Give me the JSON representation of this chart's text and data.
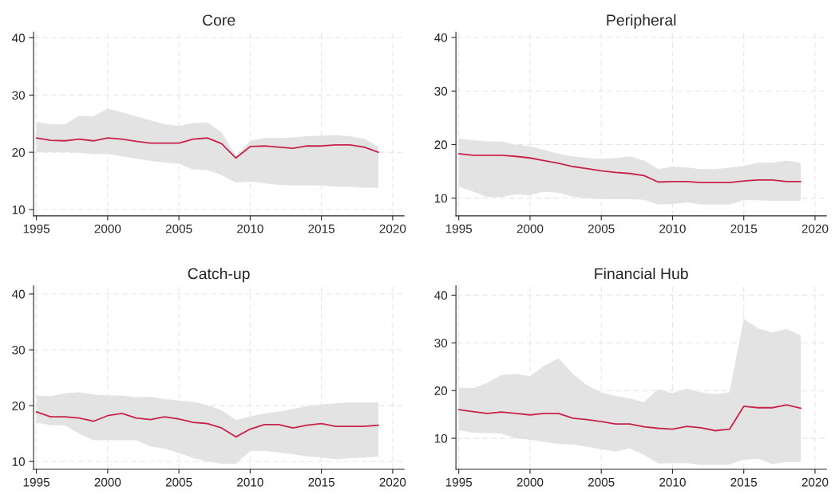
{
  "chart_data": [
    {
      "type": "line",
      "title": "Core",
      "x": [
        1995,
        1996,
        1997,
        1998,
        1999,
        2000,
        2001,
        2002,
        2003,
        2004,
        2005,
        2006,
        2007,
        2008,
        2009,
        2010,
        2011,
        2012,
        2013,
        2014,
        2015,
        2016,
        2017,
        2018,
        2019
      ],
      "series": [
        {
          "color": "#c8234a",
          "values": [
            22.5,
            22.1,
            22.0,
            22.3,
            22.0,
            22.5,
            22.3,
            21.9,
            21.6,
            21.6,
            21.6,
            22.3,
            22.5,
            21.5,
            19.0,
            21.0,
            21.1,
            20.9,
            20.7,
            21.1,
            21.1,
            21.3,
            21.3,
            20.9,
            20.0
          ],
          "upper": [
            25.3,
            24.9,
            24.9,
            26.4,
            26.3,
            27.6,
            27.0,
            26.3,
            25.6,
            24.9,
            24.6,
            25.1,
            25.2,
            23.5,
            19.3,
            22.0,
            22.5,
            22.5,
            22.6,
            22.8,
            22.9,
            23.0,
            22.8,
            22.4,
            21.0
          ],
          "lower": [
            20.0,
            20.0,
            20.0,
            19.9,
            19.7,
            19.7,
            19.3,
            18.9,
            18.5,
            18.2,
            18.0,
            17.0,
            16.9,
            16.0,
            14.7,
            14.9,
            14.6,
            14.3,
            14.2,
            14.2,
            14.2,
            14.0,
            14.0,
            13.8,
            13.8
          ]
        }
      ],
      "xlim": [
        1994.8,
        2020.8
      ],
      "xticks": [
        1995,
        2000,
        2005,
        2010,
        2015,
        2020
      ],
      "ylim": [
        8.9,
        41
      ],
      "yticks": [
        10,
        20,
        30,
        40
      ],
      "grid": true,
      "line_style": "solid",
      "marker": "none"
    },
    {
      "type": "line",
      "title": "Peripheral",
      "x": [
        1995,
        1996,
        1997,
        1998,
        1999,
        2000,
        2001,
        2002,
        2003,
        2004,
        2005,
        2006,
        2007,
        2008,
        2009,
        2010,
        2011,
        2012,
        2013,
        2014,
        2015,
        2016,
        2017,
        2018,
        2019
      ],
      "series": [
        {
          "color": "#c8234a",
          "values": [
            18.3,
            18.0,
            18.0,
            18.0,
            17.8,
            17.5,
            17.0,
            16.5,
            15.9,
            15.5,
            15.1,
            14.8,
            14.6,
            14.2,
            13.0,
            13.1,
            13.1,
            12.9,
            12.9,
            12.9,
            13.2,
            13.4,
            13.4,
            13.1,
            13.1
          ],
          "upper": [
            21.1,
            20.8,
            20.6,
            20.6,
            20.0,
            19.7,
            19.0,
            18.3,
            17.8,
            17.5,
            17.3,
            17.5,
            17.8,
            17.0,
            15.4,
            15.9,
            15.7,
            15.4,
            15.4,
            15.7,
            16.0,
            16.6,
            16.6,
            17.0,
            16.6
          ],
          "lower": [
            12.2,
            11.2,
            10.2,
            10.2,
            10.7,
            10.6,
            11.2,
            11.0,
            10.3,
            10.0,
            9.8,
            9.8,
            9.8,
            9.7,
            8.8,
            8.9,
            9.2,
            8.8,
            8.8,
            8.8,
            9.6,
            9.6,
            9.5,
            9.5,
            9.5
          ]
        }
      ],
      "xlim": [
        1994.8,
        2020.8
      ],
      "xticks": [
        1995,
        2000,
        2005,
        2010,
        2015,
        2020
      ],
      "ylim": [
        6.7,
        41
      ],
      "yticks": [
        10,
        20,
        30,
        40
      ],
      "grid": true,
      "line_style": "solid",
      "marker": "none"
    },
    {
      "type": "line",
      "title": "Catch-up",
      "x": [
        1995,
        1996,
        1997,
        1998,
        1999,
        2000,
        2001,
        2002,
        2003,
        2004,
        2005,
        2006,
        2007,
        2008,
        2009,
        2010,
        2011,
        2012,
        2013,
        2014,
        2015,
        2016,
        2017,
        2018,
        2019
      ],
      "series": [
        {
          "color": "#c8234a",
          "values": [
            18.9,
            18.0,
            18.0,
            17.8,
            17.2,
            18.2,
            18.6,
            17.8,
            17.5,
            18.0,
            17.6,
            17.0,
            16.8,
            16.0,
            14.4,
            15.8,
            16.6,
            16.6,
            16.0,
            16.5,
            16.8,
            16.3,
            16.3,
            16.3,
            16.5
          ],
          "upper": [
            21.8,
            21.7,
            22.2,
            22.4,
            22.0,
            21.8,
            21.8,
            21.5,
            21.6,
            21.2,
            20.9,
            20.7,
            20.1,
            19.2,
            17.4,
            18.1,
            18.6,
            18.9,
            19.4,
            19.9,
            20.2,
            20.4,
            20.6,
            20.6,
            20.6
          ],
          "lower": [
            17.0,
            16.5,
            16.5,
            15.0,
            13.8,
            13.8,
            13.8,
            13.8,
            12.7,
            12.3,
            11.5,
            10.6,
            10.0,
            9.6,
            9.6,
            11.9,
            11.9,
            11.6,
            11.3,
            10.9,
            10.7,
            10.4,
            10.6,
            10.7,
            10.9
          ]
        }
      ],
      "xlim": [
        1994.8,
        2020.8
      ],
      "xticks": [
        1995,
        2000,
        2005,
        2010,
        2015,
        2020
      ],
      "ylim": [
        8.6,
        41.5
      ],
      "yticks": [
        10,
        20,
        30,
        40
      ],
      "grid": true,
      "line_style": "solid",
      "marker": "none"
    },
    {
      "type": "line",
      "title": "Financial Hub",
      "x": [
        1995,
        1996,
        1997,
        1998,
        1999,
        2000,
        2001,
        2002,
        2003,
        2004,
        2005,
        2006,
        2007,
        2008,
        2009,
        2010,
        2011,
        2012,
        2013,
        2014,
        2015,
        2016,
        2017,
        2018,
        2019
      ],
      "series": [
        {
          "color": "#c8234a",
          "values": [
            16.0,
            15.6,
            15.2,
            15.5,
            15.2,
            14.9,
            15.2,
            15.2,
            14.2,
            13.9,
            13.5,
            13.0,
            13.0,
            12.4,
            12.1,
            11.9,
            12.5,
            12.2,
            11.6,
            11.9,
            16.7,
            16.4,
            16.4,
            17.0,
            16.3
          ],
          "upper": [
            20.6,
            20.5,
            21.6,
            23.3,
            23.5,
            23.0,
            25.2,
            26.8,
            23.5,
            21.1,
            19.6,
            18.9,
            18.3,
            17.6,
            20.3,
            19.5,
            20.4,
            19.6,
            19.3,
            19.6,
            35.0,
            33.0,
            32.2,
            32.9,
            31.6
          ],
          "lower": [
            11.7,
            11.2,
            11.1,
            11.0,
            10.0,
            9.7,
            9.2,
            8.8,
            8.7,
            8.2,
            7.7,
            7.2,
            7.9,
            6.5,
            4.7,
            4.8,
            4.8,
            4.4,
            4.4,
            4.5,
            5.5,
            5.7,
            4.6,
            5.0,
            5.0
          ]
        }
      ],
      "xlim": [
        1994.8,
        2020.8
      ],
      "xticks": [
        1995,
        2000,
        2005,
        2010,
        2015,
        2020
      ],
      "ylim": [
        3.5,
        42
      ],
      "yticks": [
        10,
        20,
        30,
        40
      ],
      "grid": true,
      "line_style": "solid",
      "marker": "none"
    }
  ]
}
